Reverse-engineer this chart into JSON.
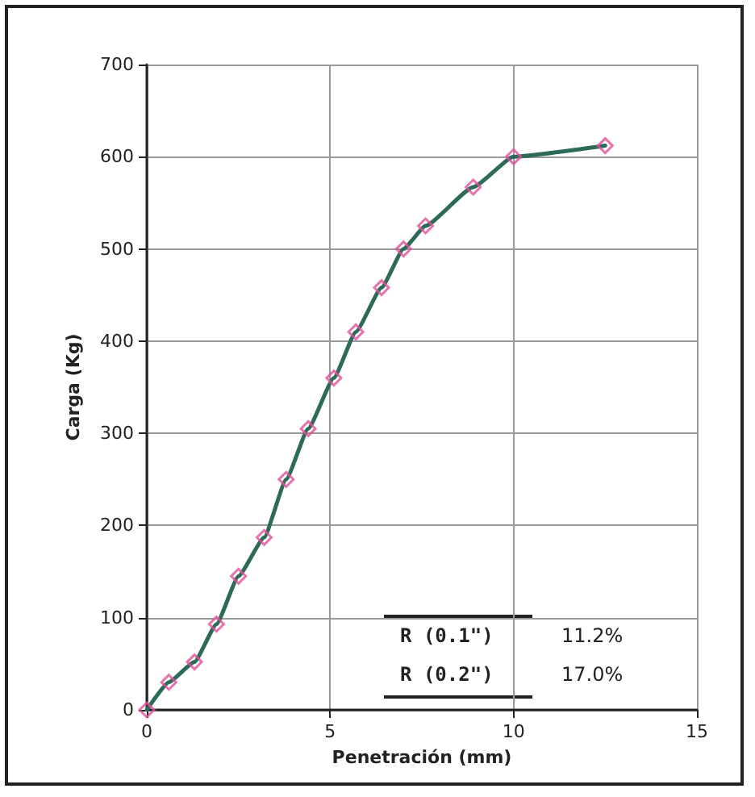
{
  "chart_data": {
    "type": "scatter",
    "xlabel": "Penetración (mm)",
    "ylabel": "Carga (Kg)",
    "x": [
      0,
      0.6,
      1.3,
      1.9,
      2.5,
      3.2,
      3.8,
      4.4,
      5.1,
      5.7,
      6.4,
      7.0,
      7.6,
      8.9,
      10.0,
      12.5
    ],
    "series": [
      {
        "color": "#e0509a",
        "marker": "diamond",
        "values": [
          0,
          30,
          52,
          93,
          145,
          187,
          250,
          305,
          360,
          410,
          458,
          500,
          525,
          567,
          600,
          612
        ]
      },
      {
        "type": "line",
        "color": "#2e6a5a",
        "marker": "none",
        "line_style": "solid",
        "values": [
          0,
          30,
          52,
          93,
          145,
          187,
          250,
          305,
          360,
          410,
          458,
          500,
          525,
          567,
          600,
          612
        ]
      }
    ],
    "xlim": [
      0,
      15
    ],
    "xticks": [
      0,
      5,
      10,
      15
    ],
    "ylim": [
      0,
      700
    ],
    "yticks": [
      0,
      100,
      200,
      300,
      400,
      500,
      600,
      700
    ],
    "grid": true,
    "annotations": [
      "R (0.1\")",
      "11.2%",
      "R (0.2\")",
      "17.0%"
    ]
  }
}
